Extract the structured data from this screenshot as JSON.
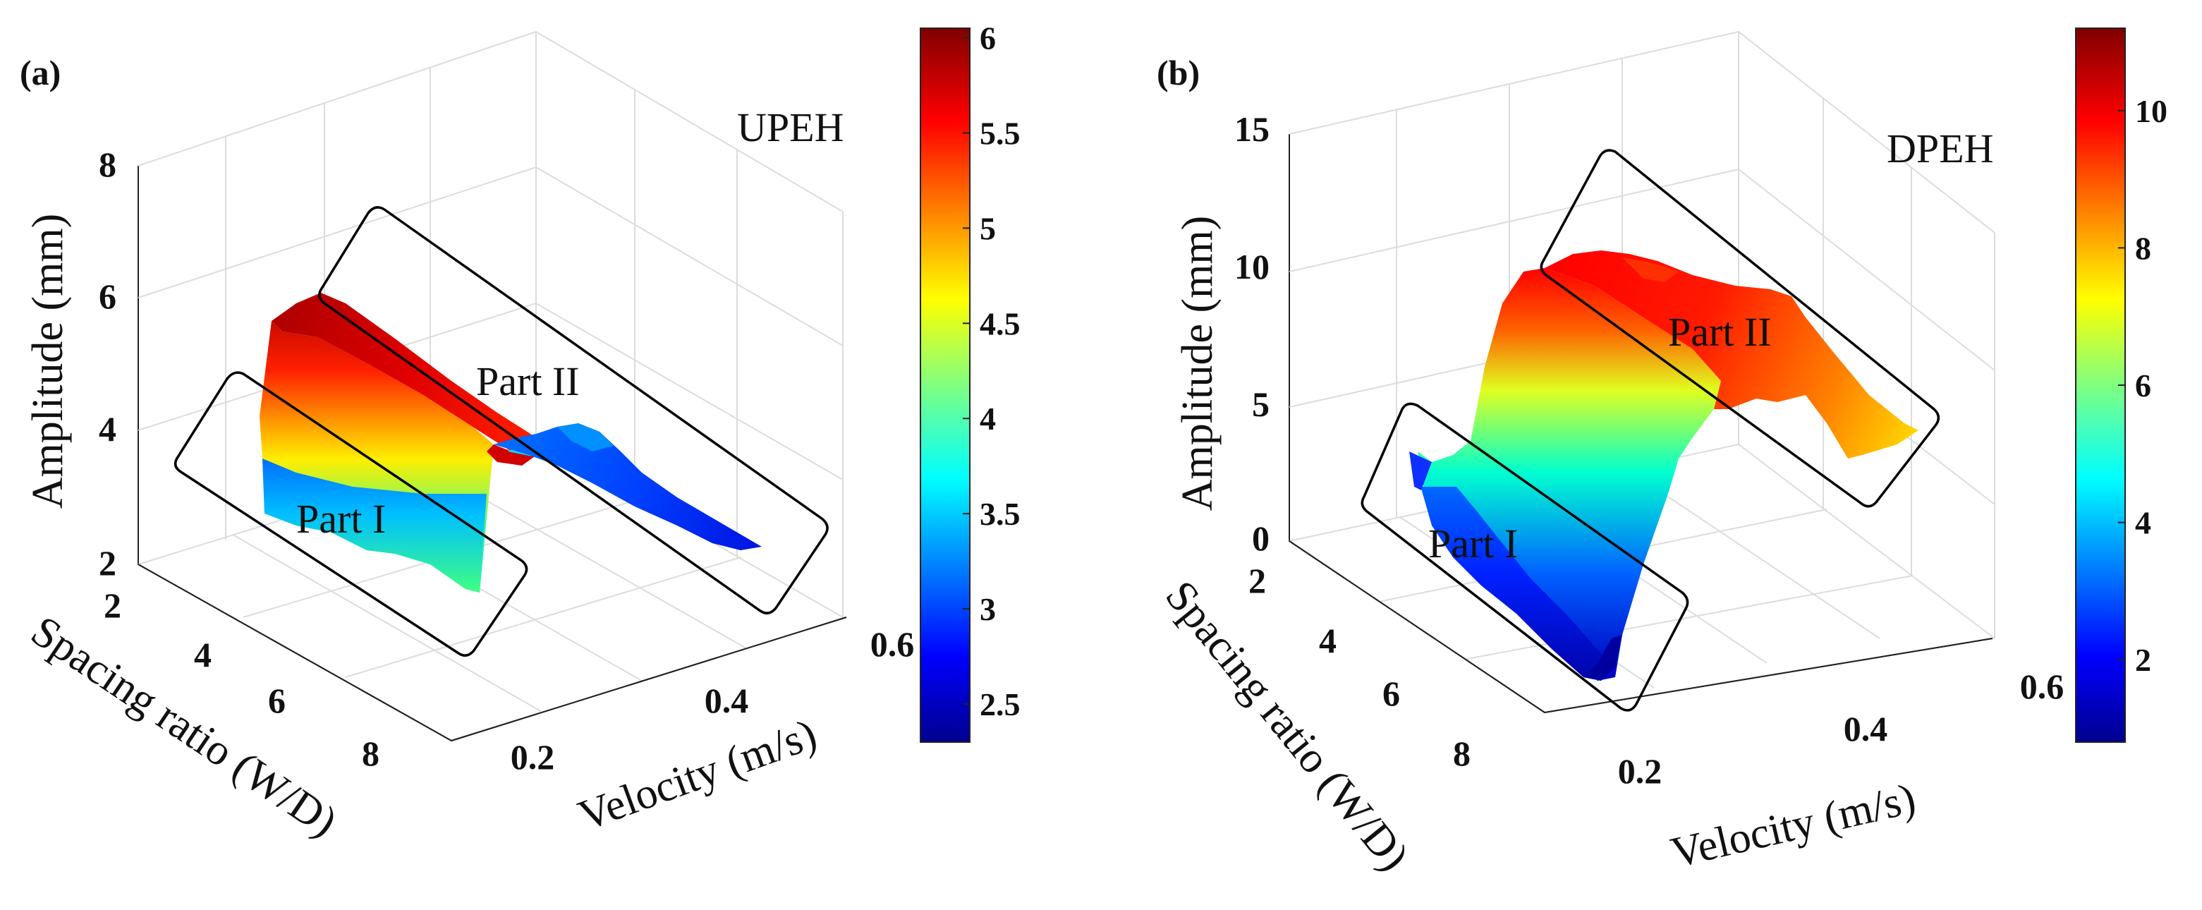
{
  "chart_data": [
    {
      "type": "surface",
      "panel_label": "(a)",
      "tag": "UPEH",
      "zlabel": "Amplitude (mm)",
      "ylabel": "Spacing ratio (W/D)",
      "xlabel": "Velocity (m/s)",
      "z_ticks": [
        "2",
        "4",
        "6",
        "8"
      ],
      "y_ticks": [
        "2",
        "4",
        "6",
        "8"
      ],
      "x_ticks": [
        "0.2",
        "0.4",
        "0.6"
      ],
      "zlim": [
        2,
        8
      ],
      "colorbar": {
        "min": 2.3,
        "max": 6.05,
        "ticks": [
          "2.5",
          "3",
          "3.5",
          "4",
          "4.5",
          "5",
          "5.5",
          "6"
        ],
        "colormap": "jet"
      },
      "regions": [
        "Part I",
        "Part II"
      ],
      "surface_profile": {
        "velocity_position": [
          0,
          0.08,
          0.2,
          0.5,
          0.62,
          0.78,
          1.0
        ],
        "amplitude_part_I": [
          3.3,
          4.4,
          4.8,
          5.7,
          5.95,
          6.0,
          5.9
        ],
        "amplitude_part_II": [
          2.6,
          2.7,
          2.7,
          2.75,
          3.8,
          5.95,
          5.9
        ],
        "note": "amplitude read along the velocity direction, from low to high velocity"
      }
    },
    {
      "type": "surface",
      "panel_label": "(b)",
      "tag": "DPEH",
      "zlabel": "Amplitude (mm)",
      "ylabel": "Spacing ratio (W/D)",
      "xlabel": "Velocity (m/s)",
      "z_ticks": [
        "0",
        "5",
        "10",
        "15"
      ],
      "y_ticks": [
        "2",
        "4",
        "6",
        "8"
      ],
      "x_ticks": [
        "0.2",
        "0.4",
        "0.6"
      ],
      "zlim": [
        0,
        15
      ],
      "colorbar": {
        "min": 0.8,
        "max": 11.2,
        "ticks": [
          "2",
          "4",
          "6",
          "8",
          "10"
        ],
        "colormap": "jet"
      },
      "regions": [
        "Part I",
        "Part II"
      ],
      "surface_profile": {
        "velocity_position": [
          0,
          0.3,
          0.6,
          0.75,
          1.0
        ],
        "amplitude_part_I": [
          1.5,
          2.0,
          9.5,
          10.5,
          10.5
        ],
        "amplitude_part_II": [
          6.5,
          7.5,
          9.0,
          10.0,
          10.2
        ],
        "note": "amplitude read along the velocity direction, from low to high velocity"
      }
    }
  ]
}
